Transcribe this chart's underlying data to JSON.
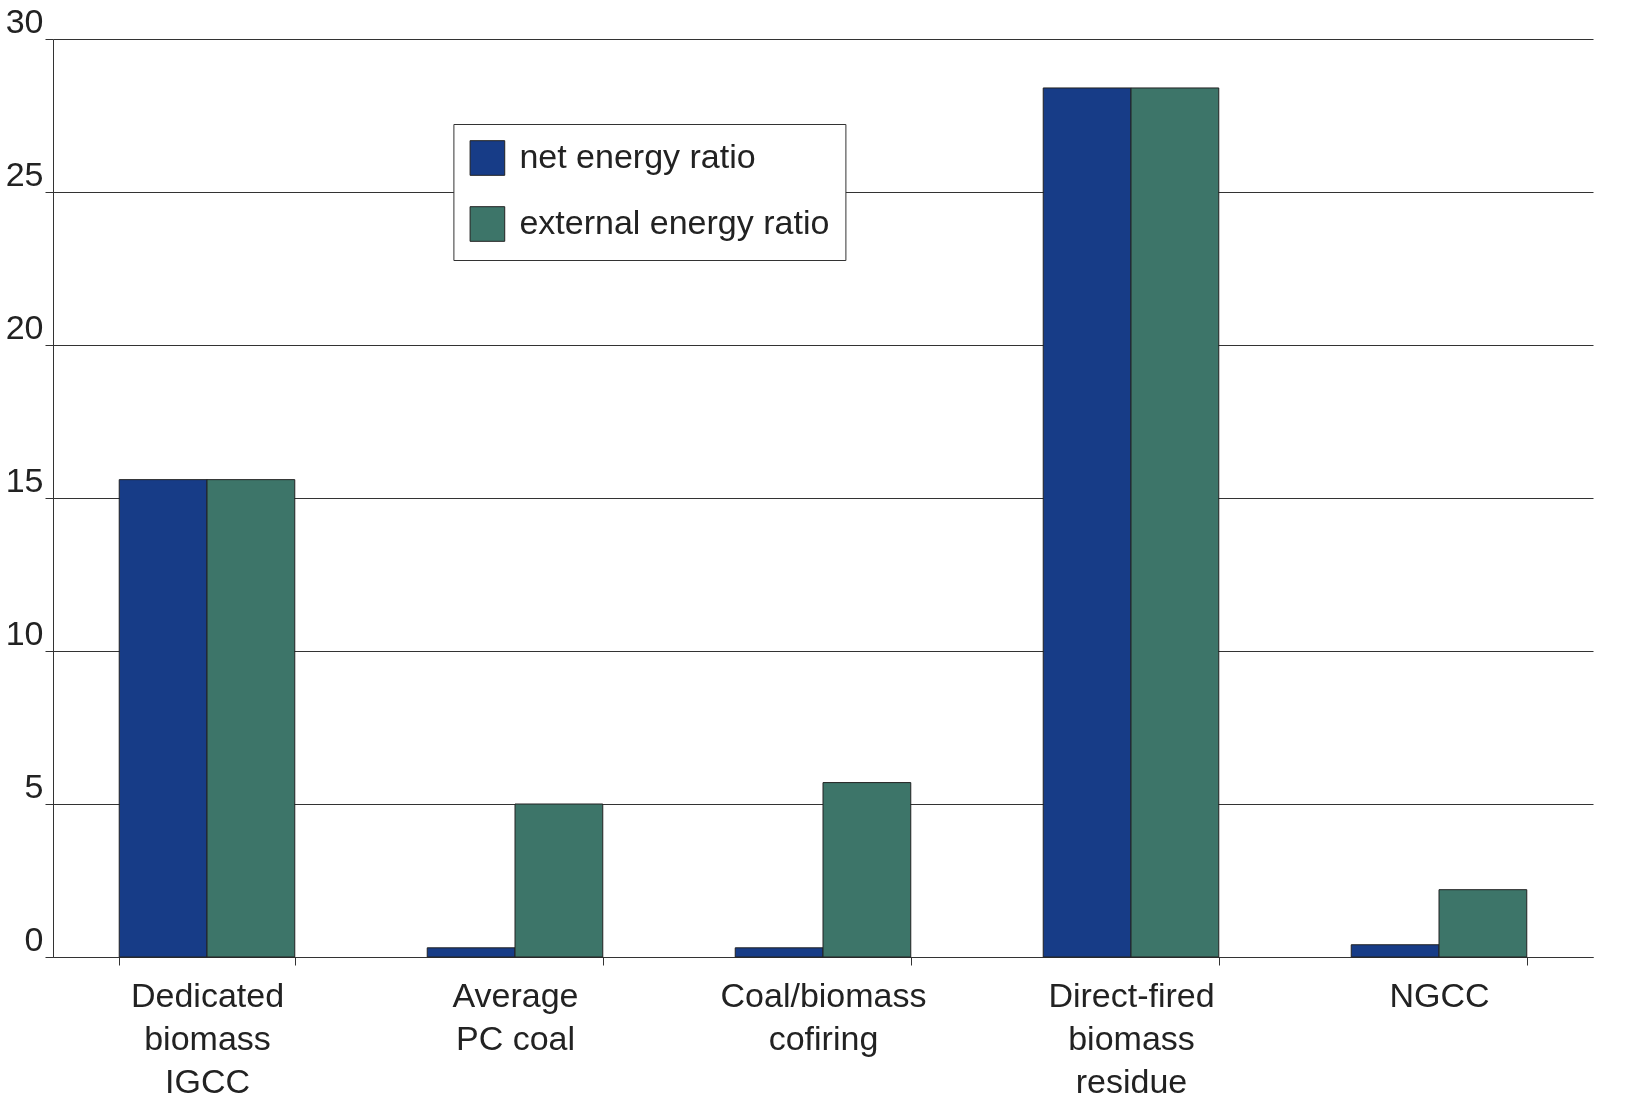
{
  "chart_data": {
    "type": "bar",
    "categories": [
      "Dedicated\nbiomass\nIGCC",
      "Average\nPC coal",
      "Coal/biomass\ncofiring",
      "Direct-fired\nbiomass\nresidue",
      "NGCC"
    ],
    "series": [
      {
        "name": "net energy ratio",
        "color": "#173c87",
        "values": [
          15.6,
          0.3,
          0.3,
          28.4,
          0.4
        ]
      },
      {
        "name": "external energy ratio",
        "color": "#3d7569",
        "values": [
          15.6,
          5.0,
          5.7,
          28.4,
          2.2
        ]
      }
    ],
    "ylim": [
      0,
      30
    ],
    "yticks": [
      0,
      5,
      10,
      15,
      20,
      25,
      30
    ],
    "grid": "y",
    "legend": "top"
  }
}
